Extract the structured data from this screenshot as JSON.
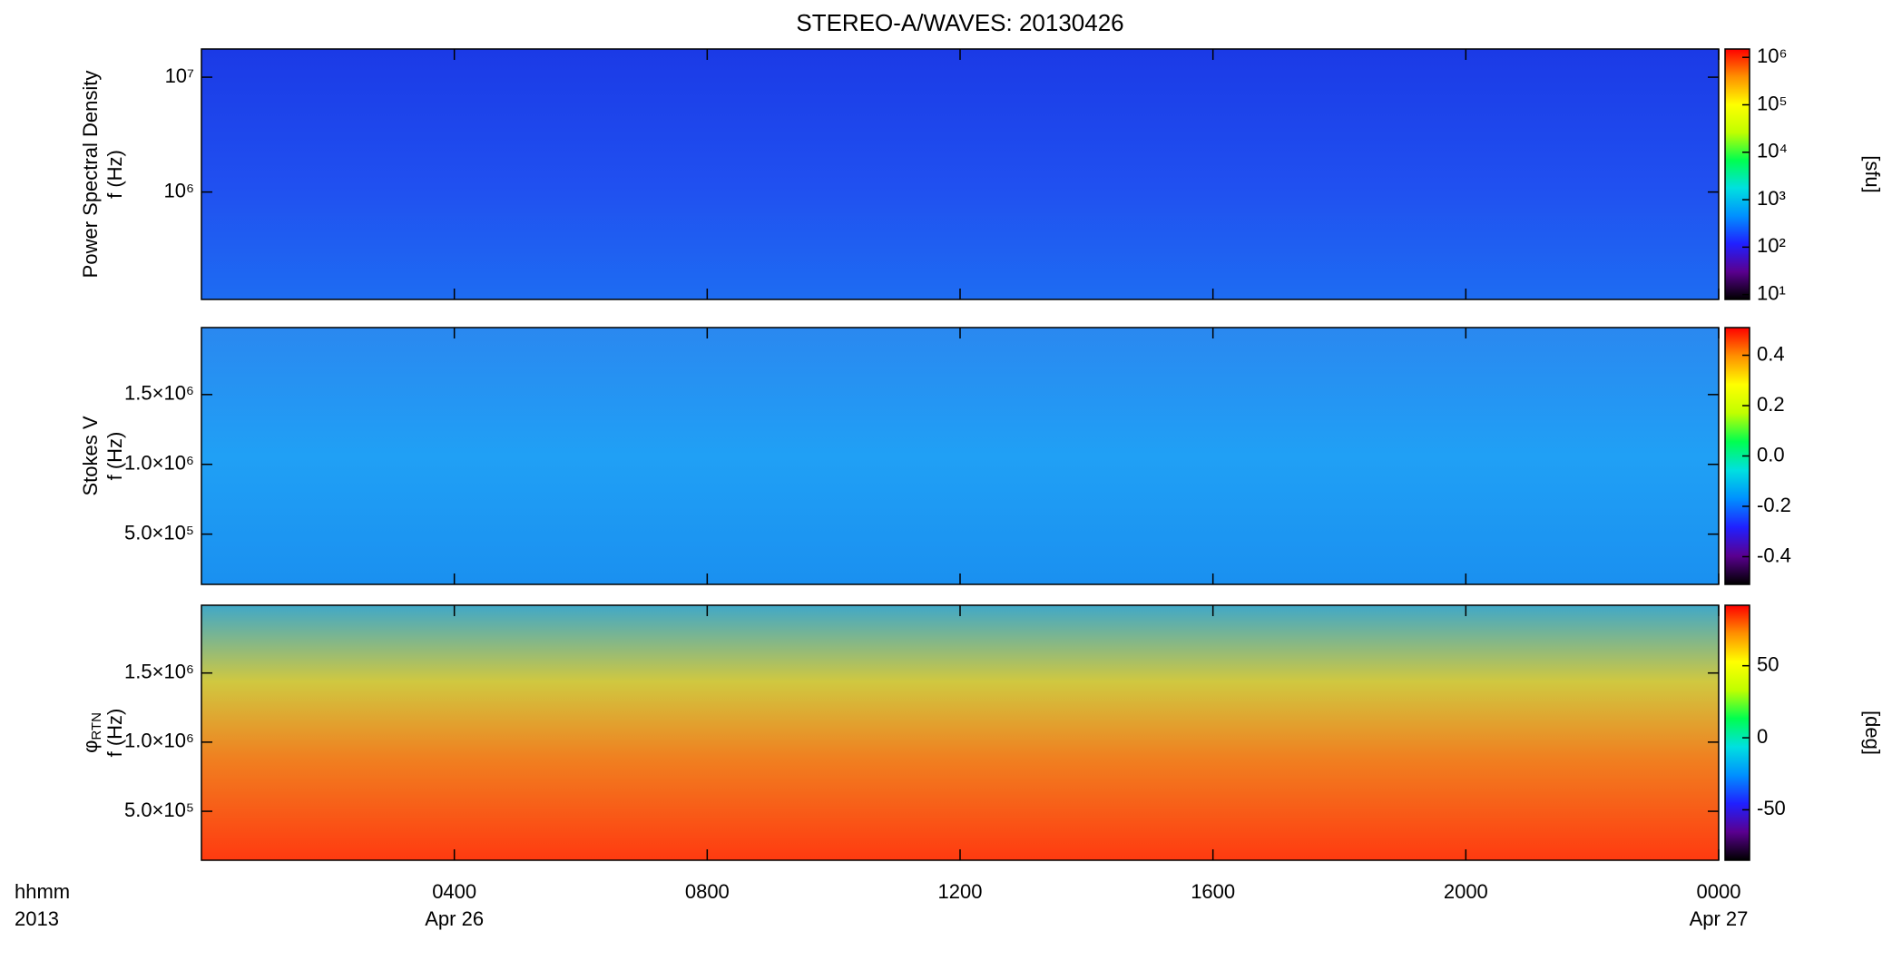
{
  "chart_data": [
    {
      "type": "spectrogram",
      "title": "STEREO-A/WAVES: 20130426",
      "ylabel": [
        "Power Spectral Density",
        "f (Hz)"
      ],
      "ylog": true,
      "ylim": [
        116000,
        17600000
      ],
      "yticks": [
        {
          "value": 1000000,
          "label": "10⁶"
        },
        {
          "value": 10000000,
          "label": "10⁷"
        }
      ],
      "clog": true,
      "clim": [
        7.9,
        1500000
      ],
      "cticks": [
        {
          "value": 10,
          "label": "10¹"
        },
        {
          "value": 100,
          "label": "10²"
        },
        {
          "value": 1000,
          "label": "10³"
        },
        {
          "value": 10000,
          "label": "10⁴"
        },
        {
          "value": 100000,
          "label": "10⁵"
        },
        {
          "value": 1000000,
          "label": "10⁶"
        }
      ],
      "clabel": "[sfu]",
      "colormap": [
        "#000000",
        "#5a0090",
        "#2020ff",
        "#0090ff",
        "#00e0e0",
        "#00ff50",
        "#c0ff00",
        "#ffff00",
        "#ff9000",
        "#ff0000"
      ]
    },
    {
      "type": "spectrogram",
      "ylabel": [
        "Stokes V",
        "f (Hz)"
      ],
      "ylog": false,
      "ylim": [
        140000,
        1980000
      ],
      "yticks": [
        {
          "value": 500000,
          "label": "5.0×10⁵"
        },
        {
          "value": 1000000,
          "label": "1.0×10⁶"
        },
        {
          "value": 1500000,
          "label": "1.5×10⁶"
        }
      ],
      "clog": false,
      "clim": [
        -0.51,
        0.51
      ],
      "cticks": [
        -0.4,
        -0.2,
        {
          "value": 0,
          "label": "0.0"
        },
        0.2,
        0.4
      ],
      "colormap": [
        "#000000",
        "#5a0090",
        "#2020ff",
        "#0090ff",
        "#00e0e0",
        "#00ff50",
        "#c0ff00",
        "#ffff00",
        "#ff9000",
        "#ff0000"
      ]
    },
    {
      "type": "spectrogram",
      "ylabel": [
        "φ",
        "f (Hz)"
      ],
      "ylabel_sub": "RTN",
      "ylog": false,
      "ylim": [
        146000,
        1990000
      ],
      "yticks": [
        {
          "value": 500000,
          "label": "5.0×10⁵"
        },
        {
          "value": 1000000,
          "label": "1.0×10⁶"
        },
        {
          "value": 1500000,
          "label": "1.5×10⁶"
        }
      ],
      "clog": false,
      "clim": [
        -85,
        92
      ],
      "cticks": [
        -50,
        0,
        50
      ],
      "clabel": "[deg]",
      "colormap": [
        "#000000",
        "#5a0090",
        "#2020ff",
        "#0090ff",
        "#00e0e0",
        "#00ff50",
        "#c0ff00",
        "#ffff00",
        "#ff9000",
        "#ff0000"
      ],
      "xlim": [
        0,
        24
      ],
      "xticks": [
        {
          "value": 4,
          "label": "0400"
        },
        {
          "value": 8,
          "label": "0800"
        },
        {
          "value": 12,
          "label": "1200"
        },
        {
          "value": 16,
          "label": "1600"
        },
        {
          "value": 20,
          "label": "2000"
        },
        {
          "value": 24,
          "label": "0000"
        }
      ],
      "xdates": [
        {
          "value": 4,
          "label": "Apr 26"
        },
        {
          "value": 24,
          "label": "Apr 27"
        }
      ],
      "xlabel": "hhmm",
      "year": "2013"
    }
  ]
}
